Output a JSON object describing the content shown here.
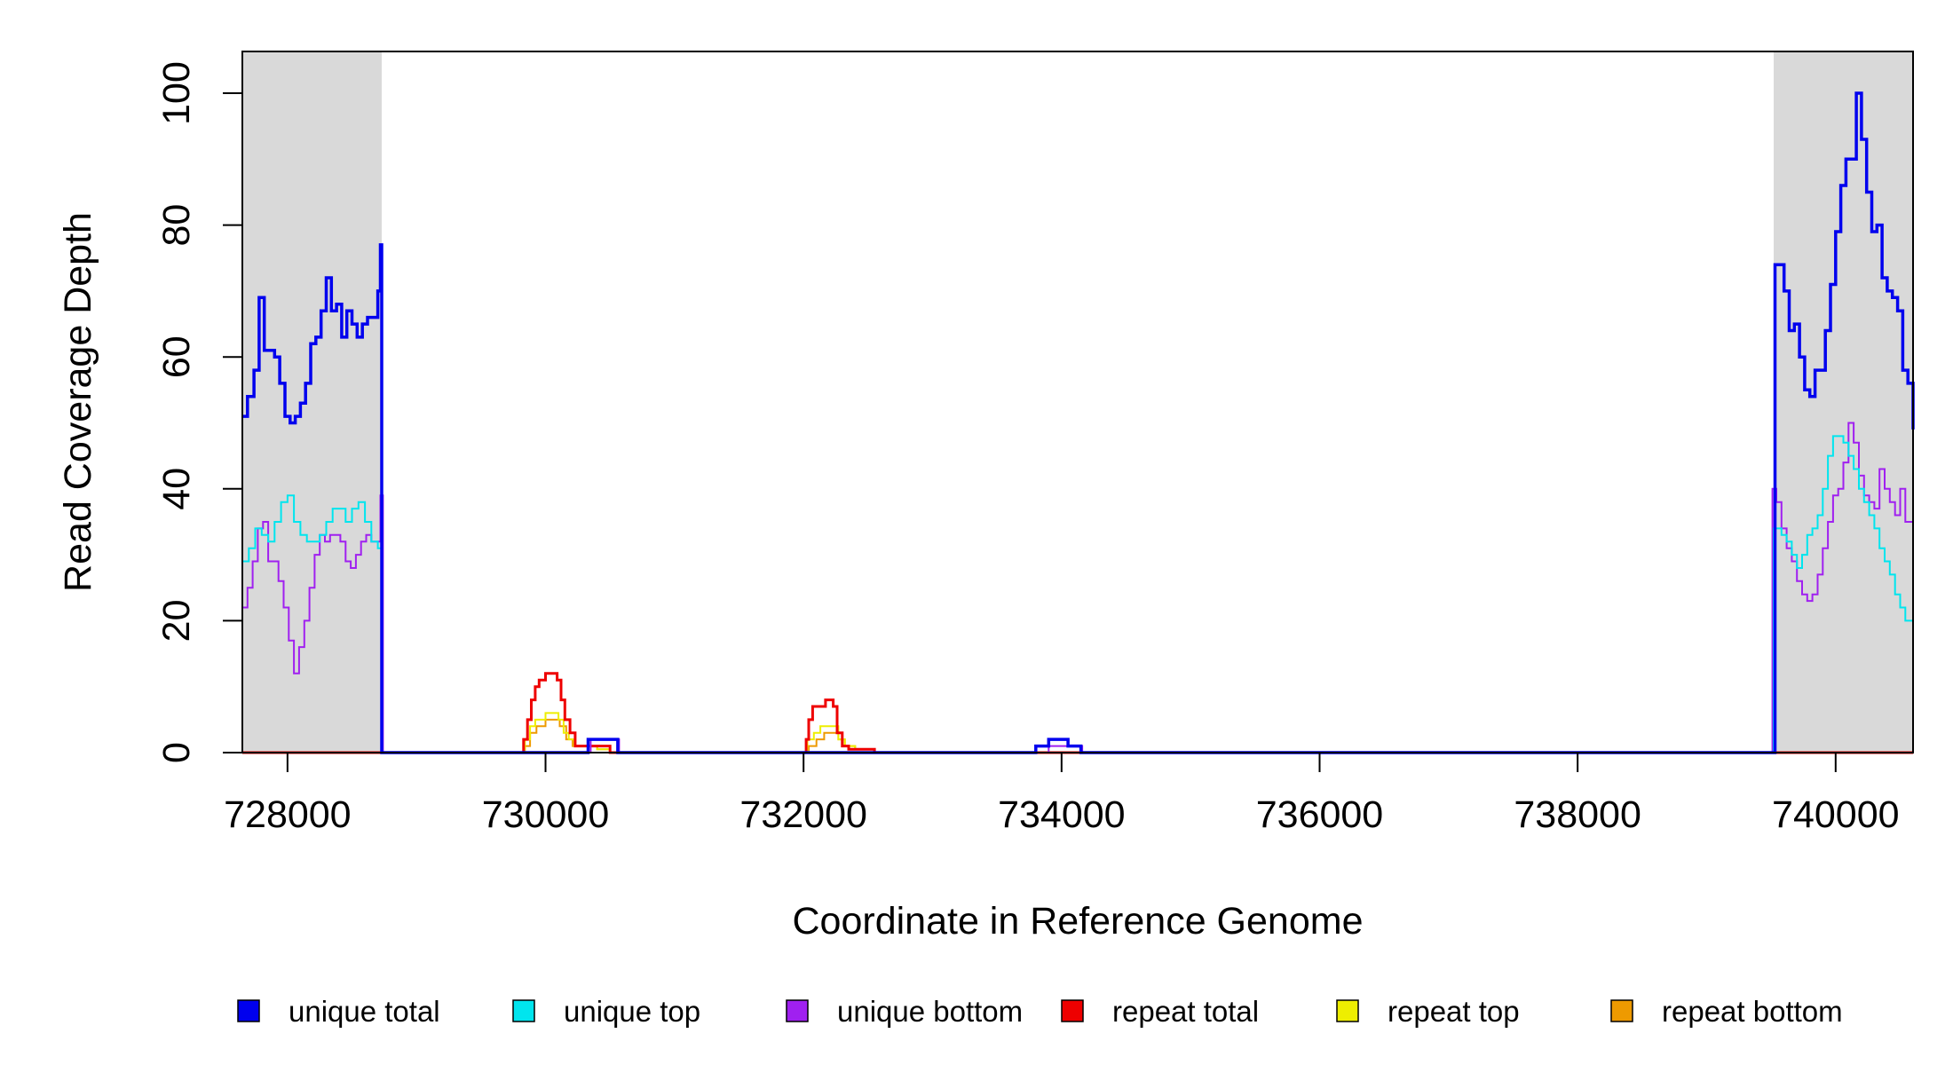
{
  "chart_data": {
    "type": "line",
    "title": "",
    "xlabel": "Coordinate in Reference Genome",
    "ylabel": "Read Coverage Depth",
    "xlim": [
      727650,
      740600
    ],
    "ylim": [
      0,
      106
    ],
    "x_ticks": [
      728000,
      730000,
      732000,
      734000,
      736000,
      738000,
      740000
    ],
    "x_tick_labels": [
      "728000",
      "730000",
      "732000",
      "734000",
      "736000",
      "738000",
      "740000"
    ],
    "y_ticks": [
      0,
      20,
      40,
      60,
      80,
      100
    ],
    "y_tick_labels": [
      "0",
      "20",
      "40",
      "60",
      "80",
      "100"
    ],
    "grid": false,
    "legend_position": "bottom",
    "shaded_regions": [
      {
        "x_start": 727650,
        "x_end": 728730,
        "color": "#d9d9d9"
      },
      {
        "x_start": 739520,
        "x_end": 740600,
        "color": "#d9d9d9"
      }
    ],
    "series": [
      {
        "name": "unique total",
        "color": "#0000ee",
        "x": [
          727650,
          727690,
          727740,
          727780,
          727820,
          727860,
          727900,
          727940,
          727980,
          728020,
          728060,
          728100,
          728140,
          728180,
          728220,
          728260,
          728300,
          728340,
          728380,
          728420,
          728460,
          728500,
          728540,
          728580,
          728620,
          728660,
          728700,
          728720,
          728730,
          728750,
          728760,
          729800,
          729850,
          729900,
          729950,
          730000,
          730050,
          730100,
          730150,
          730200,
          730250,
          730300,
          730330,
          730550,
          730560,
          731990,
          732050,
          732100,
          732150,
          732200,
          732250,
          732300,
          732350,
          732550,
          733800,
          733900,
          734050,
          734150,
          739500,
          739520,
          739530,
          739560,
          739600,
          739640,
          739680,
          739720,
          739760,
          739800,
          739840,
          739880,
          739920,
          739960,
          740000,
          740040,
          740080,
          740120,
          740160,
          740200,
          740240,
          740280,
          740320,
          740360,
          740400,
          740440,
          740480,
          740520,
          740560,
          740600
        ],
        "y": [
          51,
          54,
          58,
          69,
          61,
          61,
          60,
          56,
          51,
          50,
          51,
          53,
          56,
          62,
          63,
          67,
          72,
          67,
          68,
          63,
          67,
          65,
          63,
          65,
          66,
          66,
          70,
          77,
          0,
          0,
          0,
          0,
          0,
          0,
          0,
          0,
          0,
          0,
          0,
          0,
          0,
          0,
          2,
          2,
          0,
          0,
          0,
          0,
          0,
          0,
          0,
          0,
          0,
          0,
          1,
          2,
          1,
          0,
          0,
          0,
          74,
          74,
          70,
          64,
          65,
          60,
          55,
          54,
          58,
          58,
          64,
          71,
          79,
          86,
          90,
          90,
          100,
          93,
          85,
          79,
          80,
          72,
          70,
          69,
          67,
          58,
          56,
          49
        ]
      },
      {
        "name": "unique top",
        "color": "#00e5ee",
        "x": [
          727650,
          727700,
          727750,
          727800,
          727850,
          727900,
          727950,
          728000,
          728050,
          728100,
          728150,
          728200,
          728250,
          728300,
          728350,
          728400,
          728450,
          728500,
          728550,
          728600,
          728650,
          728700,
          728730,
          728750,
          739500,
          739520,
          739540,
          739580,
          739620,
          739660,
          739700,
          739740,
          739780,
          739820,
          739860,
          739900,
          739940,
          739980,
          740020,
          740060,
          740100,
          740140,
          740180,
          740220,
          740260,
          740300,
          740340,
          740380,
          740420,
          740460,
          740500,
          740540,
          740580,
          740600
        ],
        "y": [
          29,
          31,
          34,
          33,
          32,
          35,
          38,
          39,
          35,
          33,
          32,
          32,
          33,
          35,
          37,
          37,
          35,
          37,
          38,
          35,
          32,
          31,
          0,
          0,
          0,
          34,
          34,
          33,
          32,
          30,
          28,
          30,
          33,
          34,
          36,
          40,
          45,
          48,
          48,
          47,
          45,
          43,
          40,
          38,
          36,
          34,
          31,
          29,
          27,
          24,
          22,
          20,
          20,
          20
        ]
      },
      {
        "name": "unique bottom",
        "color": "#a020f0",
        "x": [
          727650,
          727690,
          727730,
          727770,
          727810,
          727850,
          727890,
          727930,
          727970,
          728010,
          728050,
          728090,
          728130,
          728170,
          728210,
          728250,
          728290,
          728330,
          728370,
          728410,
          728450,
          728490,
          728530,
          728570,
          728610,
          728650,
          728700,
          728720,
          728740,
          728750,
          730350,
          730560,
          730570,
          733900,
          734150,
          734160,
          739500,
          739510,
          739540,
          739580,
          739620,
          739660,
          739700,
          739740,
          739780,
          739820,
          739860,
          739900,
          739940,
          739980,
          740020,
          740060,
          740100,
          740140,
          740180,
          740220,
          740260,
          740300,
          740340,
          740380,
          740420,
          740460,
          740500,
          740540,
          740600
        ],
        "y": [
          22,
          25,
          29,
          34,
          35,
          29,
          29,
          26,
          22,
          17,
          12,
          16,
          20,
          25,
          30,
          33,
          32,
          33,
          33,
          32,
          29,
          28,
          30,
          32,
          33,
          32,
          32,
          39,
          0,
          0,
          2,
          2,
          0,
          1,
          1,
          0,
          0,
          40,
          38,
          34,
          31,
          29,
          26,
          24,
          23,
          24,
          27,
          31,
          35,
          39,
          40,
          44,
          50,
          47,
          42,
          39,
          38,
          37,
          43,
          40,
          38,
          36,
          40,
          35,
          31
        ]
      },
      {
        "name": "repeat total",
        "color": "#ee0000",
        "x": [
          727650,
          729800,
          729830,
          729860,
          729890,
          729920,
          729950,
          730000,
          730050,
          730090,
          730120,
          730150,
          730190,
          730230,
          730260,
          730400,
          730500,
          731990,
          732020,
          732040,
          732070,
          732120,
          732170,
          732230,
          732260,
          732300,
          732350,
          732450,
          732550,
          740600
        ],
        "y": [
          0,
          0,
          2,
          5,
          8,
          10,
          11,
          12,
          12,
          11,
          8,
          5,
          3,
          1,
          1,
          1,
          0,
          0,
          2,
          5,
          7,
          7,
          8,
          7,
          3,
          1,
          0.5,
          0.5,
          0,
          0
        ]
      },
      {
        "name": "repeat top",
        "color": "#eeee00",
        "x": [
          727650,
          729800,
          729840,
          729880,
          729920,
          729960,
          730000,
          730050,
          730100,
          730140,
          730180,
          730220,
          730260,
          730400,
          730500,
          731990,
          732030,
          732080,
          732130,
          732180,
          732230,
          732270,
          732320,
          732400,
          732550,
          740600
        ],
        "y": [
          0,
          0,
          2,
          4,
          5,
          5,
          6,
          6,
          5,
          3,
          2,
          1,
          1,
          0.5,
          0,
          0,
          2,
          3,
          4,
          4,
          4,
          2,
          1,
          0.5,
          0,
          0
        ]
      },
      {
        "name": "repeat bottom",
        "color": "#ee9a00",
        "x": [
          727650,
          729800,
          729840,
          729880,
          729930,
          730000,
          730060,
          730110,
          730160,
          730210,
          730260,
          730400,
          730500,
          731990,
          732040,
          732100,
          732160,
          732220,
          732270,
          732320,
          732400,
          732550,
          740600
        ],
        "y": [
          0,
          0,
          1,
          3,
          4,
          5,
          5,
          4,
          2,
          1,
          1,
          0.5,
          0,
          0,
          1,
          2,
          3,
          3,
          2,
          1,
          0.5,
          0,
          0
        ]
      }
    ],
    "legend": [
      {
        "label": "unique total",
        "color": "#0000ee"
      },
      {
        "label": "unique top",
        "color": "#00e5ee"
      },
      {
        "label": "unique bottom",
        "color": "#a020f0"
      },
      {
        "label": "repeat total",
        "color": "#ee0000"
      },
      {
        "label": "repeat top",
        "color": "#eeee00"
      },
      {
        "label": "repeat bottom",
        "color": "#ee9a00"
      }
    ]
  }
}
